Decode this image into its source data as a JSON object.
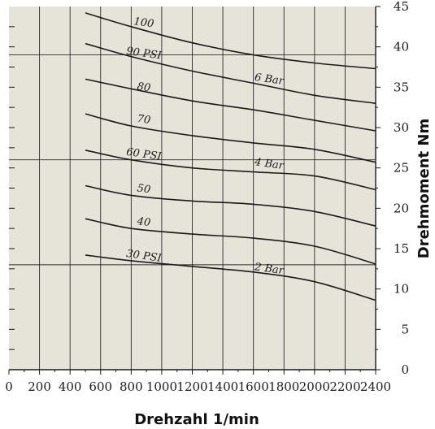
{
  "chart_data": {
    "type": "line",
    "title": "",
    "xlabel": "Drehzahl 1/min",
    "ylabel": "Drehmoment Nm",
    "xlim": [
      0,
      2400
    ],
    "ylim": [
      0,
      45
    ],
    "x_ticks": [
      0,
      200,
      400,
      600,
      800,
      1000,
      1200,
      1400,
      1600,
      1800,
      2000,
      2200,
      2400
    ],
    "y_ticks": [
      0,
      5,
      10,
      15,
      20,
      25,
      30,
      35,
      40,
      45
    ],
    "grid": "vertical every 200; horizontal at 13, 26, 39",
    "y_axis_side": "right",
    "series": [
      {
        "name": "100",
        "x": [
          500,
          800,
          1200,
          1600,
          2000,
          2400
        ],
        "y": [
          44.2,
          42.5,
          40.5,
          39.0,
          38.0,
          37.3
        ]
      },
      {
        "name": "90 PSI",
        "x": [
          500,
          800,
          1200,
          1600,
          2000,
          2400
        ],
        "y": [
          40.4,
          38.8,
          37.0,
          35.5,
          34.0,
          33.0
        ]
      },
      {
        "name": "80",
        "x": [
          500,
          800,
          1200,
          1600,
          2000,
          2400
        ],
        "y": [
          36.0,
          34.8,
          33.3,
          32.2,
          30.9,
          29.6
        ]
      },
      {
        "name": "70",
        "x": [
          500,
          800,
          1200,
          1600,
          2000,
          2400
        ],
        "y": [
          31.7,
          30.2,
          29.0,
          28.1,
          27.3,
          25.7
        ]
      },
      {
        "name": "60 PSI",
        "x": [
          500,
          800,
          1200,
          1600,
          2000,
          2400
        ],
        "y": [
          27.2,
          26.0,
          25.0,
          24.5,
          24.0,
          22.3
        ]
      },
      {
        "name": "50",
        "x": [
          500,
          800,
          1200,
          1600,
          2000,
          2400
        ],
        "y": [
          22.8,
          21.6,
          20.9,
          20.5,
          19.6,
          17.8
        ]
      },
      {
        "name": "40",
        "x": [
          500,
          800,
          1200,
          1600,
          2000,
          2400
        ],
        "y": [
          18.7,
          17.5,
          16.8,
          16.3,
          15.3,
          13.1
        ]
      },
      {
        "name": "30 PSI",
        "x": [
          500,
          800,
          1200,
          1600,
          2000,
          2400
        ],
        "y": [
          14.2,
          13.5,
          12.8,
          12.1,
          10.9,
          8.6
        ]
      }
    ],
    "annotations": [
      {
        "text": "100",
        "x": 880,
        "y": 42.6
      },
      {
        "text": "90 PSI",
        "x": 880,
        "y": 38.8
      },
      {
        "text": "80",
        "x": 880,
        "y": 34.6
      },
      {
        "text": "70",
        "x": 880,
        "y": 30.6
      },
      {
        "text": "60 PSI",
        "x": 880,
        "y": 26.3
      },
      {
        "text": "50",
        "x": 880,
        "y": 22.0
      },
      {
        "text": "40",
        "x": 880,
        "y": 17.9
      },
      {
        "text": "30 PSI",
        "x": 880,
        "y": 13.7
      },
      {
        "text": "6 Bar",
        "x": 1700,
        "y": 35.6
      },
      {
        "text": "4 Bar",
        "x": 1700,
        "y": 25.1
      },
      {
        "text": "2 Bar",
        "x": 1700,
        "y": 12.1
      }
    ]
  }
}
